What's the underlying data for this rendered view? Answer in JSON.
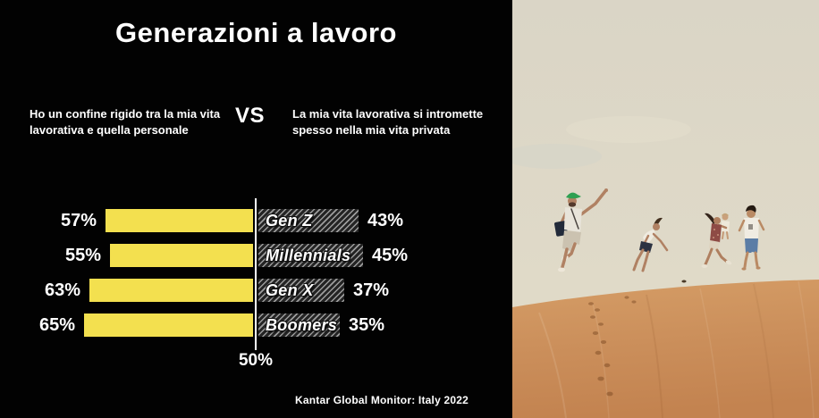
{
  "slide": {
    "title": "Generazioni a lavoro",
    "statement_left": "Ho un confine rigido tra la mia vita lavorativa e quella personale",
    "vs_label": "VS",
    "statement_right": "La mia vita lavorativa si intromette spesso nella mia vita privata",
    "center_axis_label": "50%",
    "source": "Kantar Global Monitor: Italy 2022"
  },
  "chart": {
    "rows": [
      {
        "left_pct": "57%",
        "category": "Gen Z",
        "right_pct": "43%"
      },
      {
        "left_pct": "55%",
        "category": "Millennials",
        "right_pct": "45%"
      },
      {
        "left_pct": "63%",
        "category": "Gen X",
        "right_pct": "37%"
      },
      {
        "left_pct": "65%",
        "category": "Boomers",
        "right_pct": "35%"
      }
    ]
  },
  "chart_data": {
    "type": "bar",
    "orientation": "horizontal_diverging",
    "categories": [
      "Gen Z",
      "Millennials",
      "Gen X",
      "Boomers"
    ],
    "series": [
      {
        "name": "Ho un confine rigido tra la mia vita lavorativa e quella personale",
        "side": "left",
        "color": "#F3E04F",
        "values": [
          57,
          55,
          63,
          65
        ]
      },
      {
        "name": "La mia vita lavorativa si intromette spesso nella mia vita privata",
        "side": "right",
        "color": "hatched-gray",
        "values": [
          43,
          45,
          37,
          35
        ]
      }
    ],
    "title": "Generazioni a lavoro",
    "unit": "%",
    "center_axis_value": 50,
    "center_axis_label": "50%",
    "grid": false,
    "legend_position": "none",
    "source": "Kantar Global Monitor: Italy 2022"
  },
  "colors": {
    "background": "#020202",
    "bar_left_yellow": "#F3E04F",
    "bar_right_hatch_dark": "#242424",
    "bar_right_hatch_light": "#9C9C9C",
    "text": "#FFFFFF",
    "photo_sky": "#DDD8C8",
    "photo_sand": "#CB8F5C"
  },
  "photo": {
    "alt": "family-jumping-on-sand-dune"
  }
}
